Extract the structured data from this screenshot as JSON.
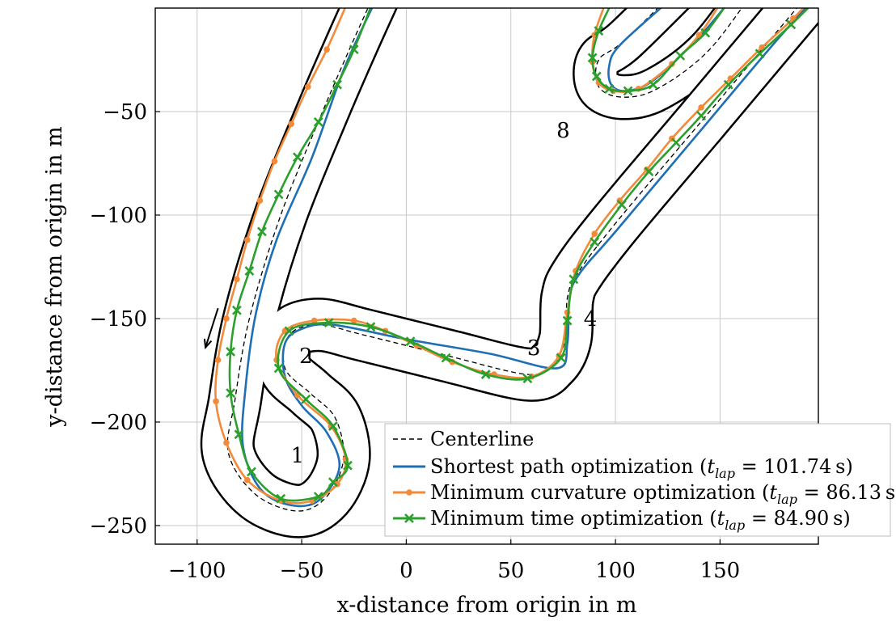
{
  "chart_data": {
    "type": "line",
    "xlabel": "x-distance from origin in m",
    "ylabel": "y-distance from origin in m",
    "xlim": [
      -120,
      197
    ],
    "ylim": [
      -259,
      0
    ],
    "xticks": [
      -100,
      -50,
      0,
      50,
      100,
      150
    ],
    "yticks": [
      -50,
      -100,
      -150,
      -200,
      -250
    ],
    "xtick_labels": [
      "−100",
      "−50",
      "0",
      "50",
      "100",
      "150"
    ],
    "ytick_labels": [
      "−50",
      "−100",
      "−150",
      "−200",
      "−250"
    ],
    "grid": true,
    "legend_position": "bottom-right",
    "corner_labels": [
      {
        "text": "1",
        "x": -52,
        "y": -216
      },
      {
        "text": "2",
        "x": -48,
        "y": -168
      },
      {
        "text": "3",
        "x": 61,
        "y": -164
      },
      {
        "text": "4",
        "x": 88,
        "y": -150
      },
      {
        "text": "8",
        "x": 75,
        "y": -59
      }
    ],
    "direction_arrow": {
      "from": [
        -90,
        -145
      ],
      "to": [
        -96,
        -164
      ]
    },
    "colors": {
      "centerline": "#000000",
      "boundary": "#000000",
      "shortest": "#1f6fb4",
      "mincurv": "#f28a3a",
      "mintime": "#2ca02c"
    },
    "track": {
      "half_width": 12,
      "centerline": [
        [
          -12,
          14
        ],
        [
          -25,
          -15
        ],
        [
          -40,
          -50
        ],
        [
          -60,
          -100
        ],
        [
          -75,
          -150
        ],
        [
          -82,
          -190
        ],
        [
          -85,
          -215
        ],
        [
          -72,
          -235
        ],
        [
          -52,
          -243
        ],
        [
          -38,
          -236
        ],
        [
          -30,
          -218
        ],
        [
          -34,
          -198
        ],
        [
          -46,
          -186
        ],
        [
          -58,
          -174
        ],
        [
          -56,
          -158
        ],
        [
          -42,
          -153
        ],
        [
          -20,
          -158
        ],
        [
          20,
          -168
        ],
        [
          58,
          -177
        ],
        [
          70,
          -172
        ],
        [
          76,
          -160
        ],
        [
          77,
          -140
        ],
        [
          82,
          -128
        ],
        [
          100,
          -104
        ],
        [
          140,
          -56
        ],
        [
          175,
          -14
        ],
        [
          200,
          16
        ]
      ],
      "hairpin_centerline": [
        [
          140,
          20
        ],
        [
          105,
          -15
        ],
        [
          92,
          -25
        ],
        [
          92,
          -38
        ],
        [
          103,
          -43
        ],
        [
          120,
          -39
        ],
        [
          145,
          -20
        ],
        [
          170,
          14
        ]
      ],
      "hairpin_half_width": 10
    },
    "series": [
      {
        "name": "Centerline",
        "style": "dashed"
      },
      {
        "name": "Shortest path optimization (t_lap = 101.74 s)",
        "legend_value": "101.74",
        "color": "#1f6fb4",
        "marker": "none",
        "points": [
          [
            -15,
            3
          ],
          [
            -30,
            -30
          ],
          [
            -45,
            -72
          ],
          [
            -62,
            -112
          ],
          [
            -72,
            -148
          ],
          [
            -77,
            -185
          ],
          [
            -78,
            -212
          ],
          [
            -70,
            -232
          ],
          [
            -56,
            -240
          ],
          [
            -42,
            -238
          ],
          [
            -32,
            -222
          ],
          [
            -38,
            -205
          ],
          [
            -50,
            -192
          ],
          [
            -58,
            -178
          ],
          [
            -58,
            -162
          ],
          [
            -50,
            -155
          ],
          [
            -35,
            -153
          ],
          [
            0,
            -160
          ],
          [
            40,
            -167
          ],
          [
            72,
            -174
          ],
          [
            77,
            -162
          ],
          [
            78,
            -140
          ],
          [
            83,
            -128
          ],
          [
            100,
            -108
          ],
          [
            140,
            -60
          ],
          [
            175,
            -18
          ],
          [
            198,
            8
          ]
        ],
        "hairpin_points": [
          [
            125,
            3
          ],
          [
            102,
            -18
          ],
          [
            97,
            -28
          ],
          [
            98,
            -37
          ],
          [
            105,
            -40
          ],
          [
            118,
            -35
          ],
          [
            140,
            -14
          ],
          [
            155,
            4
          ]
        ]
      },
      {
        "name": "Minimum curvature optimization (t_lap = 86.13 s)",
        "legend_value": "86.13",
        "color": "#f28a3a",
        "marker": "dot",
        "points": [
          [
            -28,
            3
          ],
          [
            -38,
            -20
          ],
          [
            -47,
            -38
          ],
          [
            -55,
            -56
          ],
          [
            -63,
            -74
          ],
          [
            -70,
            -93
          ],
          [
            -76,
            -112
          ],
          [
            -81,
            -131
          ],
          [
            -86,
            -150
          ],
          [
            -90,
            -170
          ],
          [
            -91,
            -190
          ],
          [
            -86,
            -210
          ],
          [
            -76,
            -228
          ],
          [
            -60,
            -238
          ],
          [
            -45,
            -238
          ],
          [
            -33,
            -230
          ],
          [
            -29,
            -218
          ],
          [
            -36,
            -202
          ],
          [
            -52,
            -187
          ],
          [
            -62,
            -170
          ],
          [
            -58,
            -156
          ],
          [
            -44,
            -151
          ],
          [
            -25,
            -151
          ],
          [
            -10,
            -156
          ],
          [
            5,
            -163
          ],
          [
            22,
            -171
          ],
          [
            42,
            -177
          ],
          [
            60,
            -178
          ],
          [
            73,
            -168
          ],
          [
            77,
            -147
          ],
          [
            81,
            -127
          ],
          [
            90,
            -109
          ],
          [
            102,
            -93
          ],
          [
            115,
            -78
          ],
          [
            127,
            -63
          ],
          [
            141,
            -48
          ],
          [
            155,
            -34
          ],
          [
            170,
            -19
          ],
          [
            185,
            -5
          ],
          [
            196,
            7
          ]
        ],
        "hairpin_points": [
          [
            95,
            2
          ],
          [
            90,
            -13
          ],
          [
            89,
            -26
          ],
          [
            92,
            -36
          ],
          [
            99,
            -40
          ],
          [
            111,
            -39
          ],
          [
            127,
            -27
          ],
          [
            140,
            -13
          ],
          [
            150,
            2
          ]
        ]
      },
      {
        "name": "Minimum time optimization (t_lap = 84.90 s)",
        "legend_value": "84.90",
        "color": "#2ca02c",
        "marker": "x",
        "points": [
          [
            -16,
            3
          ],
          [
            -25,
            -20
          ],
          [
            -33,
            -37
          ],
          [
            -42,
            -55
          ],
          [
            -52,
            -72
          ],
          [
            -61,
            -90
          ],
          [
            -69,
            -108
          ],
          [
            -75,
            -127
          ],
          [
            -81,
            -146
          ],
          [
            -84,
            -166
          ],
          [
            -84,
            -186
          ],
          [
            -80,
            -206
          ],
          [
            -74,
            -224
          ],
          [
            -60,
            -237
          ],
          [
            -42,
            -236
          ],
          [
            -35,
            -229
          ],
          [
            -28,
            -221
          ],
          [
            -35,
            -202
          ],
          [
            -48,
            -189
          ],
          [
            -61,
            -174
          ],
          [
            -56,
            -156
          ],
          [
            -37,
            -152
          ],
          [
            -17,
            -154
          ],
          [
            2,
            -161
          ],
          [
            19,
            -169
          ],
          [
            38,
            -177
          ],
          [
            58,
            -179
          ],
          [
            74,
            -169
          ],
          [
            77,
            -151
          ],
          [
            80,
            -131
          ],
          [
            90,
            -113
          ],
          [
            103,
            -95
          ],
          [
            116,
            -79
          ],
          [
            129,
            -65
          ],
          [
            141,
            -52
          ],
          [
            154,
            -37
          ],
          [
            169,
            -22
          ],
          [
            184,
            -8
          ],
          [
            198,
            6
          ]
        ],
        "hairpin_points": [
          [
            98,
            2
          ],
          [
            92,
            -11
          ],
          [
            89,
            -24
          ],
          [
            91,
            -33
          ],
          [
            97,
            -39
          ],
          [
            106,
            -40
          ],
          [
            118,
            -37
          ],
          [
            131,
            -23
          ],
          [
            143,
            -12
          ],
          [
            154,
            3
          ]
        ]
      }
    ]
  }
}
